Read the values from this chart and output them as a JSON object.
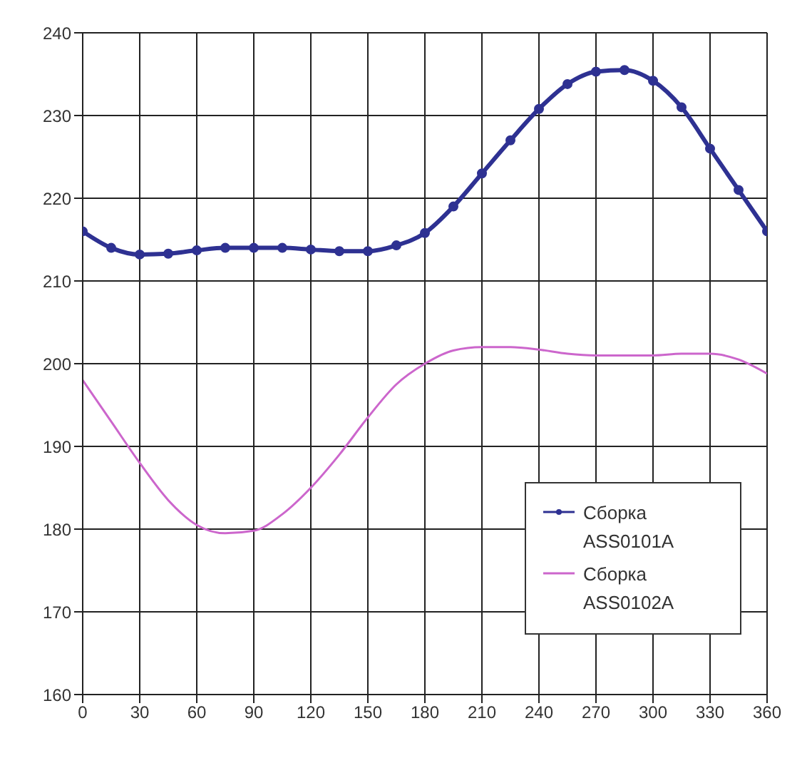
{
  "chart_data": {
    "type": "line",
    "x": [
      0,
      15,
      30,
      45,
      60,
      75,
      90,
      105,
      120,
      135,
      150,
      165,
      180,
      195,
      210,
      225,
      240,
      255,
      270,
      285,
      300,
      315,
      330,
      345,
      360
    ],
    "series": [
      {
        "name": "Сборка ASS0101A",
        "color": "#2e3192",
        "marker": "circle",
        "values": [
          216,
          214,
          213.2,
          213.3,
          213.7,
          214,
          214,
          214,
          213.8,
          213.6,
          213.6,
          214.3,
          215.8,
          219,
          223,
          227,
          230.8,
          233.8,
          235.3,
          235.5,
          234.2,
          231,
          226,
          221,
          216
        ]
      },
      {
        "name": "Сборка ASS0102A",
        "color": "#cc66cc",
        "marker": "none",
        "values": [
          198,
          193,
          188,
          183.5,
          180.5,
          179.5,
          179.8,
          181.8,
          185,
          189,
          193.5,
          197.5,
          200,
          201.6,
          202,
          202,
          201.7,
          201.2,
          201,
          201,
          201,
          201.2,
          201.2,
          200.5,
          198.8
        ]
      }
    ],
    "xlim": [
      0,
      360
    ],
    "xticks": [
      0,
      30,
      60,
      90,
      120,
      150,
      180,
      210,
      240,
      270,
      300,
      330,
      360
    ],
    "ylim": [
      160,
      240
    ],
    "yticks": [
      160,
      170,
      180,
      190,
      200,
      210,
      220,
      230,
      240
    ],
    "grid": true,
    "legend": "right",
    "line_style": "solid"
  }
}
